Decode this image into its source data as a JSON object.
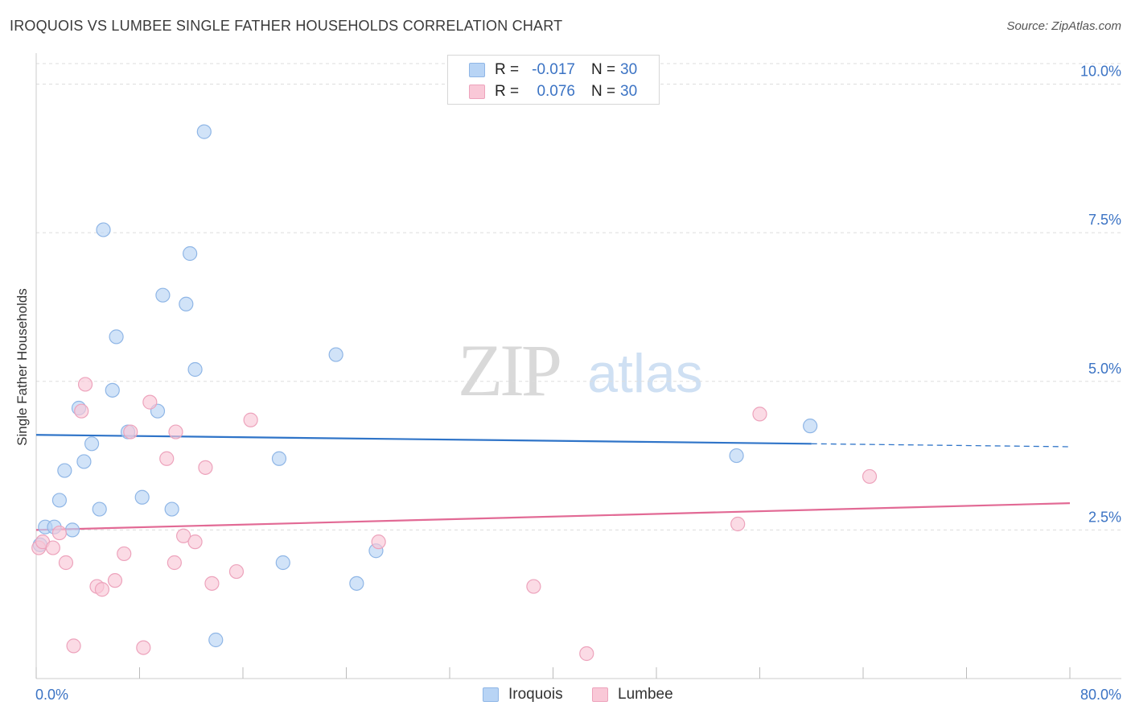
{
  "title": "IROQUOIS VS LUMBEE SINGLE FATHER HOUSEHOLDS CORRELATION CHART",
  "source": "Source: ZipAtlas.com",
  "watermark": {
    "zip": "ZIP",
    "atlas": "atlas"
  },
  "colors": {
    "iroquois_fill": "#b8d4f5",
    "iroquois_stroke": "#8fb6e6",
    "iroquois_line": "#2f74c8",
    "lumbee_fill": "#f9c8d7",
    "lumbee_stroke": "#eda3bc",
    "lumbee_line": "#e26a95",
    "tick_text": "#3b73c4",
    "grid": "#dddddd"
  },
  "legend": {
    "rows": [
      {
        "series": "Iroquois",
        "r_label": "R =",
        "r_value": "-0.017",
        "n_label": "N =",
        "n_value": "30"
      },
      {
        "series": "Lumbee",
        "r_label": "R =",
        "r_value": "0.076",
        "n_label": "N =",
        "n_value": "30"
      }
    ]
  },
  "chart_data": {
    "type": "scatter",
    "title": "IROQUOIS VS LUMBEE SINGLE FATHER HOUSEHOLDS CORRELATION CHART",
    "xlabel": "",
    "ylabel": "Single Father Households",
    "xlim": [
      0,
      80
    ],
    "ylim": [
      0,
      10.4
    ],
    "x_tick_labels": [
      "0.0%",
      "80.0%"
    ],
    "y_ticks": [
      2.5,
      5.0,
      7.5,
      10.0
    ],
    "y_tick_labels": [
      "2.5%",
      "5.0%",
      "7.5%",
      "10.0%"
    ],
    "series": [
      {
        "name": "Iroquois",
        "points": [
          [
            0.3,
            2.25
          ],
          [
            0.7,
            2.55
          ],
          [
            1.4,
            2.55
          ],
          [
            1.8,
            3.0
          ],
          [
            2.2,
            3.5
          ],
          [
            2.8,
            2.5
          ],
          [
            3.3,
            4.55
          ],
          [
            3.7,
            3.65
          ],
          [
            4.3,
            3.95
          ],
          [
            4.9,
            2.85
          ],
          [
            5.2,
            7.55
          ],
          [
            5.9,
            4.85
          ],
          [
            6.2,
            5.75
          ],
          [
            7.1,
            4.15
          ],
          [
            8.2,
            3.05
          ],
          [
            9.4,
            4.5
          ],
          [
            9.8,
            6.45
          ],
          [
            10.5,
            2.85
          ],
          [
            11.6,
            6.3
          ],
          [
            11.9,
            7.15
          ],
          [
            12.3,
            5.2
          ],
          [
            13.0,
            9.2
          ],
          [
            13.9,
            0.65
          ],
          [
            18.8,
            3.7
          ],
          [
            19.1,
            1.95
          ],
          [
            23.2,
            5.45
          ],
          [
            24.8,
            1.6
          ],
          [
            26.3,
            2.15
          ],
          [
            54.2,
            3.75
          ],
          [
            59.9,
            4.25
          ]
        ],
        "trend": {
          "x": [
            0,
            60,
            80
          ],
          "y": [
            4.1,
            3.93,
            3.9
          ],
          "solid_until": 60
        }
      },
      {
        "name": "Lumbee",
        "points": [
          [
            0.2,
            2.2
          ],
          [
            0.5,
            2.3
          ],
          [
            1.3,
            2.2
          ],
          [
            1.8,
            2.45
          ],
          [
            2.3,
            1.95
          ],
          [
            2.9,
            0.55
          ],
          [
            3.5,
            4.5
          ],
          [
            3.8,
            4.95
          ],
          [
            4.7,
            1.55
          ],
          [
            5.1,
            1.5
          ],
          [
            6.1,
            1.65
          ],
          [
            6.8,
            2.1
          ],
          [
            7.3,
            4.15
          ],
          [
            8.3,
            0.52
          ],
          [
            8.8,
            4.65
          ],
          [
            10.1,
            3.7
          ],
          [
            10.7,
            1.95
          ],
          [
            10.8,
            4.15
          ],
          [
            11.4,
            2.4
          ],
          [
            12.3,
            2.3
          ],
          [
            13.1,
            3.55
          ],
          [
            13.6,
            1.6
          ],
          [
            15.5,
            1.8
          ],
          [
            16.6,
            4.35
          ],
          [
            26.5,
            2.3
          ],
          [
            38.5,
            1.55
          ],
          [
            42.6,
            0.42
          ],
          [
            54.3,
            2.6
          ],
          [
            56.0,
            4.45
          ],
          [
            64.5,
            3.4
          ]
        ],
        "trend": {
          "x": [
            0,
            80
          ],
          "y": [
            2.5,
            2.95
          ],
          "solid_until": 80
        }
      }
    ]
  }
}
